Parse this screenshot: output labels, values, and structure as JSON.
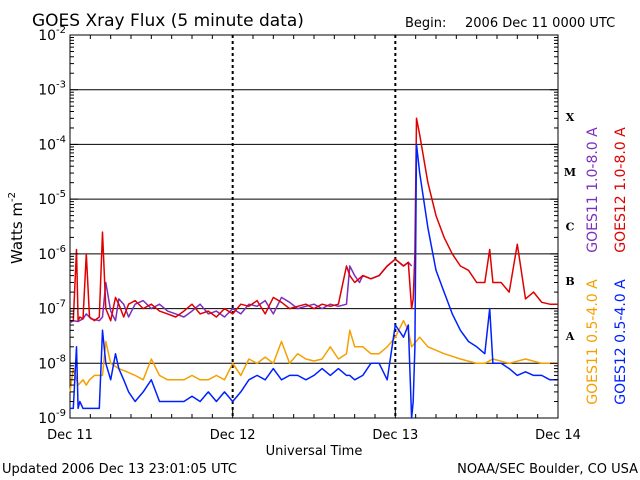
{
  "chart_data": {
    "type": "line",
    "title": "GOES Xray Flux (5 minute data)",
    "begin_label": "Begin:",
    "begin_value": "2006 Dec 11 0000 UTC",
    "xlabel": "Universal Time",
    "ylabel_base": "Watts m",
    "ylabel_exp": "-2",
    "x_ticks": [
      "Dec 11",
      "Dec 12",
      "Dec 13",
      "Dec 14"
    ],
    "x_range_days": [
      0,
      3
    ],
    "y_scale": "log",
    "ylim": [
      1e-09,
      0.01
    ],
    "y_ticks": [
      {
        "base": "10",
        "exp": "-9",
        "value": 1e-09
      },
      {
        "base": "10",
        "exp": "-8",
        "value": 1e-08
      },
      {
        "base": "10",
        "exp": "-7",
        "value": 1e-07
      },
      {
        "base": "10",
        "exp": "-6",
        "value": 1e-06
      },
      {
        "base": "10",
        "exp": "-5",
        "value": 1e-05
      },
      {
        "base": "10",
        "exp": "-4",
        "value": 0.0001
      },
      {
        "base": "10",
        "exp": "-3",
        "value": 0.001
      },
      {
        "base": "10",
        "exp": "-2",
        "value": 0.01
      }
    ],
    "flare_classes": [
      {
        "label": "A",
        "value": 1e-08
      },
      {
        "label": "B",
        "value": 1e-07
      },
      {
        "label": "C",
        "value": 1e-06
      },
      {
        "label": "M",
        "value": 1e-05
      },
      {
        "label": "X",
        "value": 0.0001
      }
    ],
    "series": [
      {
        "name": "GOES11 1.0-8.0 A",
        "color": "#7b2fbe",
        "x": [
          0,
          0.02,
          0.05,
          0.08,
          0.1,
          0.13,
          0.18,
          0.2,
          0.22,
          0.25,
          0.28,
          0.3,
          0.33,
          0.36,
          0.4,
          0.45,
          0.5,
          0.55,
          0.6,
          0.65,
          0.7,
          0.75,
          0.8,
          0.85,
          0.9,
          0.95,
          1.0,
          1.05,
          1.1,
          1.15,
          1.2,
          1.25,
          1.3,
          1.35,
          1.4,
          1.45,
          1.5,
          1.55,
          1.6,
          1.65,
          1.7,
          1.72,
          1.75,
          1.78,
          1.8,
          1.85,
          1.9,
          1.95,
          2.0,
          2.05,
          2.08,
          2.1
        ],
        "y": [
          5.5e-08,
          6e-08,
          5.8e-08,
          6.5e-08,
          8e-08,
          6.5e-08,
          6e-08,
          7e-08,
          3e-07,
          9e-08,
          6e-08,
          1.5e-07,
          1.2e-07,
          7e-08,
          1.2e-07,
          1.4e-07,
          1e-07,
          1.2e-07,
          9e-08,
          8e-08,
          7e-08,
          9e-08,
          1.2e-07,
          8e-08,
          9e-08,
          7e-08,
          1e-07,
          8e-08,
          1.2e-07,
          1.1e-07,
          1.4e-07,
          8e-08,
          1.6e-07,
          1.3e-07,
          1e-07,
          1.1e-07,
          1.2e-07,
          1e-07,
          1.2e-07,
          1.1e-07,
          1.2e-07,
          6e-07,
          4e-07,
          3e-07,
          4e-07,
          3.5e-07,
          4e-07,
          6e-07,
          8e-07,
          6e-07,
          7e-07,
          6e-07
        ]
      },
      {
        "name": "GOES12 1.0-8.0 A",
        "color": "#e00000",
        "x": [
          0,
          0.02,
          0.04,
          0.05,
          0.06,
          0.08,
          0.1,
          0.12,
          0.15,
          0.18,
          0.2,
          0.22,
          0.25,
          0.28,
          0.3,
          0.33,
          0.36,
          0.4,
          0.45,
          0.5,
          0.55,
          0.6,
          0.65,
          0.7,
          0.75,
          0.8,
          0.85,
          0.9,
          0.95,
          1.0,
          1.05,
          1.1,
          1.15,
          1.2,
          1.25,
          1.3,
          1.35,
          1.4,
          1.45,
          1.5,
          1.55,
          1.6,
          1.65,
          1.7,
          1.72,
          1.75,
          1.8,
          1.85,
          1.9,
          1.95,
          2.0,
          2.05,
          2.08,
          2.1,
          2.11,
          2.12,
          2.13,
          2.15,
          2.2,
          2.25,
          2.3,
          2.35,
          2.4,
          2.45,
          2.5,
          2.55,
          2.58,
          2.6,
          2.65,
          2.7,
          2.75,
          2.8,
          2.85,
          2.9,
          2.95,
          3.0
        ],
        "y": [
          6e-08,
          6e-08,
          1.2e-06,
          6e-08,
          7e-08,
          6.5e-08,
          1e-06,
          7e-08,
          6e-08,
          7e-08,
          2.5e-06,
          1e-07,
          6e-08,
          1.6e-07,
          1.2e-07,
          7e-08,
          1.2e-07,
          1.4e-07,
          1e-07,
          1.2e-07,
          9e-08,
          8e-08,
          7e-08,
          9e-08,
          1.2e-07,
          8e-08,
          9e-08,
          7e-08,
          1e-07,
          8e-08,
          1.2e-07,
          1.1e-07,
          1.4e-07,
          8e-08,
          1.6e-07,
          1.3e-07,
          1e-07,
          1.1e-07,
          1.2e-07,
          1e-07,
          1.2e-07,
          1.1e-07,
          1.2e-07,
          6e-07,
          4e-07,
          3e-07,
          4e-07,
          3.5e-07,
          4e-07,
          6e-07,
          8e-07,
          6e-07,
          7e-07,
          1e-07,
          1.5e-07,
          1e-06,
          0.0003,
          0.00015,
          2e-05,
          5e-06,
          2e-06,
          1e-06,
          6e-07,
          5e-07,
          3e-07,
          3e-07,
          1.2e-06,
          3e-07,
          3e-07,
          2e-07,
          1.5e-06,
          1.5e-07,
          2e-07,
          1.3e-07,
          1.2e-07,
          1.2e-07
        ]
      },
      {
        "name": "GOES11 0.5-4.0 A",
        "color": "#f5a000",
        "x": [
          0,
          0.02,
          0.05,
          0.08,
          0.1,
          0.12,
          0.15,
          0.2,
          0.22,
          0.25,
          0.3,
          0.35,
          0.4,
          0.45,
          0.5,
          0.55,
          0.6,
          0.65,
          0.7,
          0.75,
          0.8,
          0.85,
          0.9,
          0.95,
          1.0,
          1.05,
          1.1,
          1.15,
          1.2,
          1.25,
          1.3,
          1.35,
          1.4,
          1.45,
          1.5,
          1.55,
          1.6,
          1.65,
          1.7,
          1.72,
          1.75,
          1.8,
          1.85,
          1.9,
          1.95,
          2.0,
          2.05,
          2.08,
          2.1,
          2.15,
          2.2,
          2.3,
          2.4,
          2.5,
          2.55,
          2.6,
          2.7,
          2.8,
          2.9,
          3.0
        ],
        "y": [
          3e-09,
          8e-09,
          4e-09,
          5e-09,
          4e-09,
          5e-09,
          6e-09,
          6e-09,
          2.5e-08,
          1e-08,
          8e-09,
          7e-09,
          6e-09,
          5e-09,
          1.2e-08,
          6e-09,
          5e-09,
          5e-09,
          5e-09,
          6e-09,
          5e-09,
          5e-09,
          6e-09,
          5e-09,
          1e-08,
          6e-09,
          1.2e-08,
          1e-08,
          1.3e-08,
          1e-08,
          2.5e-08,
          1e-08,
          1.5e-08,
          1.2e-08,
          1.1e-08,
          1.2e-08,
          2e-08,
          1.2e-08,
          1.5e-08,
          4e-08,
          2e-08,
          2e-08,
          1.5e-08,
          1.5e-08,
          2e-08,
          3e-08,
          6e-08,
          4e-08,
          2e-08,
          3e-08,
          2e-08,
          1.5e-08,
          1.2e-08,
          1e-08,
          1e-08,
          1.2e-08,
          1e-08,
          1.2e-08,
          1e-08,
          1e-08
        ]
      },
      {
        "name": "GOES12 0.5-4.0 A",
        "color": "#0020ff",
        "x": [
          0,
          0.02,
          0.04,
          0.05,
          0.06,
          0.08,
          0.1,
          0.12,
          0.15,
          0.18,
          0.2,
          0.22,
          0.25,
          0.28,
          0.3,
          0.33,
          0.36,
          0.4,
          0.45,
          0.5,
          0.55,
          0.6,
          0.65,
          0.7,
          0.75,
          0.8,
          0.85,
          0.9,
          0.95,
          1.0,
          1.05,
          1.1,
          1.15,
          1.2,
          1.25,
          1.3,
          1.35,
          1.4,
          1.45,
          1.5,
          1.55,
          1.6,
          1.65,
          1.7,
          1.72,
          1.75,
          1.8,
          1.85,
          1.9,
          1.95,
          2.0,
          2.05,
          2.08,
          2.1,
          2.11,
          2.12,
          2.13,
          2.15,
          2.2,
          2.25,
          2.3,
          2.35,
          2.4,
          2.45,
          2.5,
          2.55,
          2.58,
          2.6,
          2.65,
          2.7,
          2.75,
          2.8,
          2.85,
          2.9,
          2.95,
          3.0
        ],
        "y": [
          1.5e-09,
          1.5e-09,
          2e-08,
          1.5e-09,
          2e-09,
          1.5e-09,
          1.5e-09,
          1.5e-09,
          1.5e-09,
          1.5e-09,
          4e-08,
          1e-08,
          5e-09,
          1.5e-08,
          8e-09,
          5e-09,
          3e-09,
          2e-09,
          3e-09,
          5e-09,
          2e-09,
          2e-09,
          2e-09,
          2e-09,
          2.5e-09,
          2e-09,
          3e-09,
          2e-09,
          3e-09,
          2e-09,
          3e-09,
          5e-09,
          6e-09,
          5e-09,
          8e-09,
          5e-09,
          6e-09,
          6e-09,
          5e-09,
          6e-09,
          8e-09,
          6e-09,
          8e-09,
          6e-09,
          6e-09,
          5e-09,
          6e-09,
          1e-08,
          1e-08,
          5e-09,
          5e-08,
          3e-08,
          5e-08,
          1e-09,
          2e-09,
          2e-08,
          0.0001,
          3e-05,
          3e-06,
          5e-07,
          2e-07,
          8e-08,
          4e-08,
          2.5e-08,
          2e-08,
          1.5e-08,
          1e-07,
          1e-08,
          1e-08,
          8e-09,
          6e-09,
          7e-09,
          6e-09,
          6e-09,
          5e-09,
          5e-09
        ]
      }
    ],
    "footer_left": "Updated 2006 Dec 13 23:01:05 UTC",
    "footer_right": "NOAA/SEC Boulder, CO USA"
  }
}
